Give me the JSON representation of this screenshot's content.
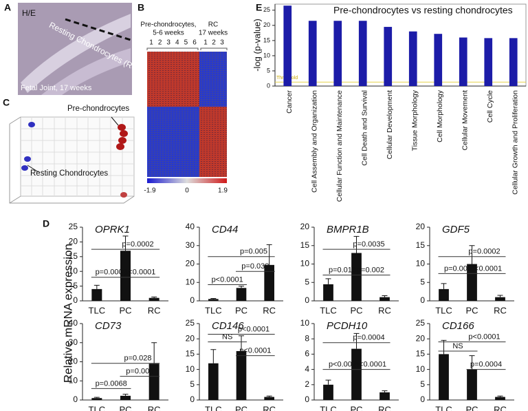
{
  "panel_labels": [
    "A",
    "B",
    "C",
    "D",
    "E"
  ],
  "panel_a": {
    "stain": "H/E",
    "region": "Resting Chondrocytes (RC)",
    "caption": "Fetal Joint, 17 weeks"
  },
  "panel_b": {
    "group_1": "Pre-chondrocytes,",
    "group_1_sub": "5-6 weeks",
    "group_2": "RC",
    "group_2_sub": "17 weeks",
    "columns_1": [
      "1",
      "2",
      "3",
      "4",
      "5",
      "6"
    ],
    "columns_2": [
      "1",
      "2",
      "3"
    ],
    "scale": [
      "-1.9",
      "0",
      "1.9"
    ]
  },
  "panel_c": {
    "cluster_1": "Pre-chondrocytes",
    "cluster_2": "Resting Chondrocytes"
  },
  "panel_d": {
    "ylabel": "Relative mRNA expression"
  },
  "chart_data": [
    {
      "type": "bar",
      "title": "Pre-chondrocytes vs resting chondrocytes",
      "ylabel": "-log (p-value)",
      "color": "#1c1ca8",
      "categories": [
        "Cancer",
        "Cell Assembly and Organization",
        "Cellular Function and Maintenance",
        "Cell Death and Survival",
        "Cellular Development",
        "Tissue Morphology",
        "Cell Morphology",
        "Cellular Movement",
        "Cell Cycle",
        "Cellular Growth and Proliferation"
      ],
      "values": [
        26.5,
        21.5,
        21.5,
        21.5,
        19.5,
        18,
        17.2,
        16,
        15.8,
        15.8
      ],
      "ylim": [
        0,
        27
      ],
      "yticks": [
        0,
        5,
        10,
        15,
        20,
        25
      ],
      "threshold": {
        "value": 1.3,
        "label": "Threshold"
      }
    },
    {
      "type": "bar",
      "title": "OPRK1",
      "color": "#111",
      "categories": [
        "TLC",
        "PC",
        "RC"
      ],
      "values": [
        4,
        17,
        1
      ],
      "errors": [
        1.3,
        5,
        0.3
      ],
      "ylim": [
        0,
        25
      ],
      "yticks": [
        0,
        5,
        10,
        15,
        20,
        25
      ],
      "annotations": [
        "p=0.0002",
        "p=0.0003",
        "p<0.0001"
      ]
    },
    {
      "type": "bar",
      "title": "CD44",
      "color": "#111",
      "categories": [
        "TLC",
        "PC",
        "RC"
      ],
      "values": [
        1,
        7,
        19.5
      ],
      "errors": [
        0.3,
        1,
        11
      ],
      "ylim": [
        0,
        40
      ],
      "yticks": [
        0,
        10,
        20,
        30,
        40
      ],
      "annotations": [
        "p=0.005",
        "p=0.038",
        "p<0.0001"
      ]
    },
    {
      "type": "bar",
      "title": "BMPR1B",
      "color": "#111",
      "categories": [
        "TLC",
        "PC",
        "RC"
      ],
      "values": [
        4.5,
        13,
        1
      ],
      "errors": [
        1.5,
        4.5,
        0.4
      ],
      "ylim": [
        0,
        20
      ],
      "yticks": [
        0,
        5,
        10,
        15,
        20
      ],
      "annotations": [
        "p=0.0035",
        "p=0.013",
        "p=0.002"
      ]
    },
    {
      "type": "bar",
      "title": "GDF5",
      "color": "#111",
      "categories": [
        "TLC",
        "PC",
        "RC"
      ],
      "values": [
        3.2,
        10,
        1
      ],
      "errors": [
        1.5,
        5,
        0.5
      ],
      "ylim": [
        0,
        20
      ],
      "yticks": [
        0,
        5,
        10,
        15,
        20
      ],
      "annotations": [
        "p=0.0002",
        "p=0.002",
        "p<0.0001"
      ]
    },
    {
      "type": "bar",
      "title": "CD73",
      "color": "#111",
      "categories": [
        "TLC",
        "PC",
        "RC"
      ],
      "values": [
        1,
        2.2,
        19
      ],
      "errors": [
        0.4,
        0.8,
        11
      ],
      "ylim": [
        0,
        40
      ],
      "yticks": [
        0,
        10,
        20,
        30,
        40
      ],
      "annotations": [
        "p=0.028",
        "p=0.0068",
        "p=0.004"
      ]
    },
    {
      "type": "bar",
      "title": "CD146",
      "color": "#111",
      "categories": [
        "TLC",
        "PC",
        "RC"
      ],
      "values": [
        12,
        16,
        1
      ],
      "errors": [
        4.5,
        5,
        0.3
      ],
      "ylim": [
        0,
        25
      ],
      "yticks": [
        0,
        5,
        10,
        15,
        20,
        25
      ],
      "annotations": [
        "NS",
        "p<0.0001",
        "p<0.0001"
      ]
    },
    {
      "type": "bar",
      "title": "PCDH10",
      "color": "#111",
      "categories": [
        "TLC",
        "PC",
        "RC"
      ],
      "values": [
        2,
        6.7,
        1
      ],
      "errors": [
        0.6,
        2,
        0.2
      ],
      "ylim": [
        0,
        10
      ],
      "yticks": [
        0,
        2,
        4,
        6,
        8,
        10
      ],
      "annotations": [
        "p=0.0004",
        "p<0.007",
        "p<0.0001"
      ]
    },
    {
      "type": "bar",
      "title": "CD166",
      "color": "#111",
      "categories": [
        "TLC",
        "PC",
        "RC"
      ],
      "values": [
        15,
        10,
        1
      ],
      "errors": [
        4.5,
        4.5,
        0.3
      ],
      "ylim": [
        0,
        25
      ],
      "yticks": [
        0,
        5,
        10,
        15,
        20,
        25
      ],
      "annotations": [
        "NS",
        "p<0.0001",
        "p=0.0004"
      ]
    }
  ]
}
